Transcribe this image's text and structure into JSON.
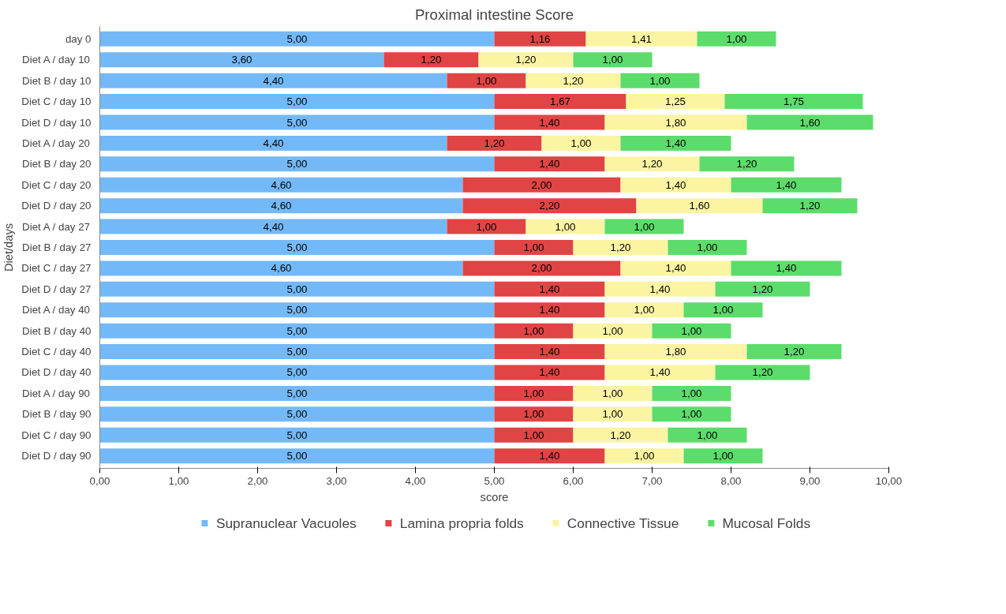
{
  "chart_data": {
    "type": "bar",
    "orientation": "horizontal",
    "stacked": true,
    "title": "Proximal intestine Score",
    "xlabel": "score",
    "ylabel": "Diet/days",
    "categories": [
      "day 0",
      "Diet A / day 10",
      "Diet B / day 10",
      "Diet C / day 10",
      "Diet D / day 10",
      "Diet A / day 20",
      "Diet B / day 20",
      "Diet C / day 20",
      "Diet D / day 20",
      "Diet A / day 27",
      "Diet B / day 27",
      "Diet C / day 27",
      "Diet D / day 27",
      "Diet A / day 40",
      "Diet B / day 40",
      "Diet C / day 40",
      "Diet D / day 40",
      "Diet A / day 90",
      "Diet B / day 90",
      "Diet C / day 90",
      "Diet D / day 90"
    ],
    "series": [
      {
        "name": "Supranuclear Vacuoles",
        "color": "#74b9f7",
        "values": [
          5,
          3.6,
          4.4,
          5,
          5,
          4.4,
          5,
          4.6,
          4.6,
          4.4,
          5,
          4.6,
          5,
          5,
          5,
          5,
          5,
          5,
          5,
          5,
          5
        ],
        "value_labels": [
          "5,00",
          "3,60",
          "4,40",
          "5,00",
          "5,00",
          "4,40",
          "5,00",
          "4,60",
          "4,60",
          "4,40",
          "5,00",
          "4,60",
          "5,00",
          "5,00",
          "5,00",
          "5,00",
          "5,00",
          "5,00",
          "5,00",
          "5,00",
          "5,00"
        ]
      },
      {
        "name": "Lamina propria folds",
        "color": "#e04444",
        "values": [
          1.16,
          1.2,
          1.0,
          1.67,
          1.4,
          1.2,
          1.4,
          2.0,
          2.2,
          1.0,
          1.0,
          2.0,
          1.4,
          1.4,
          1.0,
          1.4,
          1.4,
          1.0,
          1.0,
          1.0,
          1.4
        ],
        "value_labels": [
          "1,16",
          "1,20",
          "1,00",
          "1,67",
          "1,40",
          "1,20",
          "1,40",
          "2,00",
          "2,20",
          "1,00",
          "1,00",
          "2,00",
          "1,40",
          "1,40",
          "1,00",
          "1,40",
          "1,40",
          "1,00",
          "1,00",
          "1,00",
          "1,40"
        ]
      },
      {
        "name": "Connective Tissue",
        "color": "#fbf4a2",
        "values": [
          1.41,
          1.2,
          1.2,
          1.25,
          1.8,
          1.0,
          1.2,
          1.4,
          1.6,
          1.0,
          1.2,
          1.4,
          1.4,
          1.0,
          1.0,
          1.8,
          1.4,
          1.0,
          1.0,
          1.2,
          1.0
        ],
        "value_labels": [
          "1,41",
          "1,20",
          "1,20",
          "1,25",
          "1,80",
          "1,00",
          "1,20",
          "1,40",
          "1,60",
          "1,00",
          "1,20",
          "1,40",
          "1,40",
          "1,00",
          "1,00",
          "1,80",
          "1,40",
          "1,00",
          "1,00",
          "1,20",
          "1,00"
        ]
      },
      {
        "name": "Mucosal Folds",
        "color": "#5cdc6a",
        "values": [
          1.0,
          1.0,
          1.0,
          1.75,
          1.6,
          1.4,
          1.2,
          1.4,
          1.2,
          1.0,
          1.0,
          1.4,
          1.2,
          1.0,
          1.0,
          1.2,
          1.2,
          1.0,
          1.0,
          1.0,
          1.0
        ],
        "value_labels": [
          "1,00",
          "1,00",
          "1,00",
          "1,75",
          "1,60",
          "1,40",
          "1,20",
          "1,40",
          "1,20",
          "1,00",
          "1,00",
          "1,40",
          "1,20",
          "1,00",
          "1,00",
          "1,20",
          "1,20",
          "1,00",
          "1,00",
          "1,00",
          "1,00"
        ]
      }
    ],
    "xlim": [
      0,
      10
    ],
    "xticks": [
      {
        "value": 0,
        "label": "0,00"
      },
      {
        "value": 1,
        "label": "1,00"
      },
      {
        "value": 2,
        "label": "2,00"
      },
      {
        "value": 3,
        "label": "3,00"
      },
      {
        "value": 4,
        "label": "4,00"
      },
      {
        "value": 5,
        "label": "5,00"
      },
      {
        "value": 6,
        "label": "6,00"
      },
      {
        "value": 7,
        "label": "7,00"
      },
      {
        "value": 8,
        "label": "8,00"
      },
      {
        "value": 9,
        "label": "9,00"
      },
      {
        "value": 10,
        "label": "10,00"
      }
    ],
    "grid": false,
    "legend": "bottom"
  }
}
